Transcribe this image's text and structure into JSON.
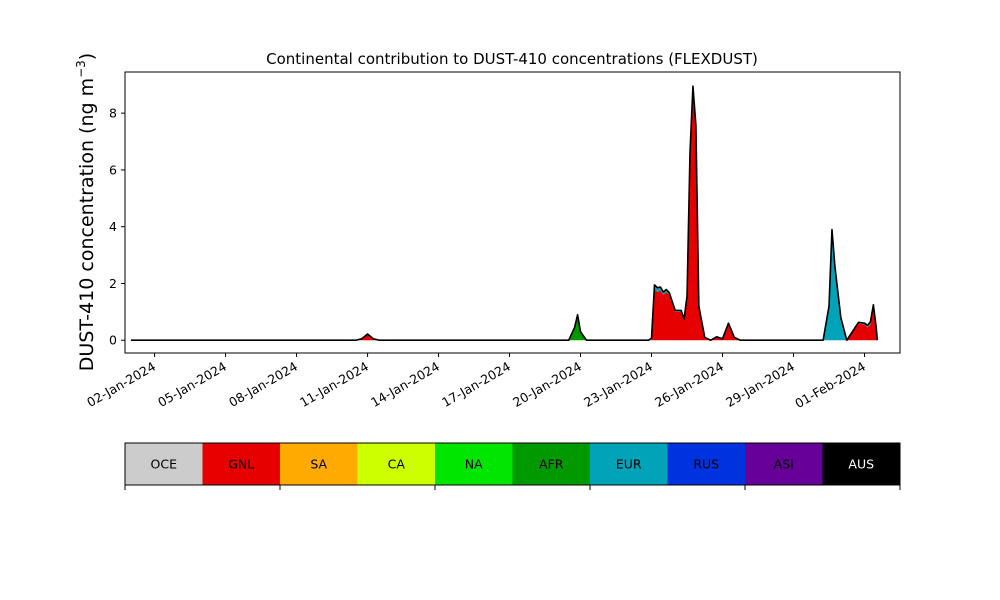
{
  "chart_data": {
    "type": "area",
    "stacked": true,
    "title": "Continental contribution to DUST-410 concentrations (FLEXDUST)",
    "ylabel_main": "DUST-410 concentration (ng m",
    "ylabel_exp": "−3",
    "ylabel_close": ")",
    "xlabel": "",
    "x_start": "2024-01-01T00:00",
    "x_end": "2024-02-01T00:00",
    "xlim": [
      "2023-12-31T18:00",
      "2024-02-02T12:00"
    ],
    "ylim": [
      -0.45,
      9.45
    ],
    "yticks": [
      0,
      2,
      4,
      6,
      8
    ],
    "ytick_labels": [
      "0",
      "2",
      "4",
      "6",
      "8"
    ],
    "xticks": [
      "2024-01-02",
      "2024-01-05",
      "2024-01-08",
      "2024-01-11",
      "2024-01-14",
      "2024-01-17",
      "2024-01-20",
      "2024-01-23",
      "2024-01-26",
      "2024-01-29",
      "2024-02-01"
    ],
    "xtick_labels": [
      "02-Jan-2024",
      "05-Jan-2024",
      "08-Jan-2024",
      "11-Jan-2024",
      "14-Jan-2024",
      "17-Jan-2024",
      "20-Jan-2024",
      "23-Jan-2024",
      "26-Jan-2024",
      "29-Jan-2024",
      "01-Feb-2024"
    ],
    "grid": false,
    "total_line_color": "#000000",
    "series": [
      {
        "name": "GNL",
        "color": "#e60000",
        "points": [
          [
            "2024-01-01T00:00",
            0
          ],
          [
            "2024-01-10T12:00",
            0
          ],
          [
            "2024-01-10T18:00",
            0.05
          ],
          [
            "2024-01-11T00:00",
            0.22
          ],
          [
            "2024-01-11T06:00",
            0.05
          ],
          [
            "2024-01-11T12:00",
            0
          ],
          [
            "2024-01-23T00:00",
            0
          ],
          [
            "2024-01-23T03:00",
            1.8
          ],
          [
            "2024-01-23T06:00",
            1.7
          ],
          [
            "2024-01-23T09:00",
            1.75
          ],
          [
            "2024-01-23T12:00",
            1.6
          ],
          [
            "2024-01-23T15:00",
            1.7
          ],
          [
            "2024-01-23T18:00",
            1.6
          ],
          [
            "2024-01-24T00:00",
            1.0
          ],
          [
            "2024-01-24T06:00",
            1.0
          ],
          [
            "2024-01-24T09:00",
            0.7
          ],
          [
            "2024-01-24T12:00",
            1.5
          ],
          [
            "2024-01-24T15:00",
            6.5
          ],
          [
            "2024-01-24T18:00",
            8.8
          ],
          [
            "2024-01-24T21:00",
            7.5
          ],
          [
            "2024-01-25T00:00",
            1.2
          ],
          [
            "2024-01-25T06:00",
            0.1
          ],
          [
            "2024-01-25T12:00",
            0
          ],
          [
            "2024-01-25T18:00",
            0.12
          ],
          [
            "2024-01-26T00:00",
            0.05
          ],
          [
            "2024-01-26T06:00",
            0.6
          ],
          [
            "2024-01-26T12:00",
            0.1
          ],
          [
            "2024-01-26T18:00",
            0
          ],
          [
            "2024-01-31T06:00",
            0
          ],
          [
            "2024-01-31T12:00",
            0.3
          ],
          [
            "2024-01-31T18:00",
            0.6
          ],
          [
            "2024-02-01T00:00",
            0.55
          ],
          [
            "2024-02-01T03:00",
            0.45
          ],
          [
            "2024-02-01T06:00",
            0.55
          ],
          [
            "2024-02-01T09:00",
            1.2
          ],
          [
            "2024-02-01T12:00",
            0.4
          ],
          [
            "2024-02-01T13:00",
            0
          ]
        ]
      },
      {
        "name": "AFR",
        "color": "#009900",
        "points": [
          [
            "2024-01-01T00:00",
            0
          ],
          [
            "2024-01-19T12:00",
            0
          ],
          [
            "2024-01-19T18:00",
            0.45
          ],
          [
            "2024-01-19T21:00",
            0.9
          ],
          [
            "2024-01-20T00:00",
            0.3
          ],
          [
            "2024-01-20T06:00",
            0
          ],
          [
            "2024-02-01T13:00",
            0
          ]
        ]
      },
      {
        "name": "EUR",
        "color": "#00a3b8",
        "points": [
          [
            "2024-01-01T00:00",
            0
          ],
          [
            "2024-01-22T21:00",
            0
          ],
          [
            "2024-01-23T03:00",
            0.15
          ],
          [
            "2024-01-23T06:00",
            0.15
          ],
          [
            "2024-01-23T12:00",
            0.1
          ],
          [
            "2024-01-24T00:00",
            0.05
          ],
          [
            "2024-01-24T12:00",
            0.05
          ],
          [
            "2024-01-24T18:00",
            0.15
          ],
          [
            "2024-01-25T00:00",
            0
          ],
          [
            "2024-01-30T06:00",
            0
          ],
          [
            "2024-01-30T12:00",
            1.2
          ],
          [
            "2024-01-30T15:00",
            3.9
          ],
          [
            "2024-01-30T18:00",
            2.6
          ],
          [
            "2024-01-31T00:00",
            0.8
          ],
          [
            "2024-01-31T06:00",
            0
          ],
          [
            "2024-02-01T00:00",
            0.05
          ],
          [
            "2024-02-01T06:00",
            0.1
          ],
          [
            "2024-02-01T09:00",
            0.05
          ],
          [
            "2024-02-01T13:00",
            0
          ]
        ]
      }
    ],
    "legend": {
      "placement": "bottom",
      "entries": [
        {
          "label": "OCE",
          "color": "#cccccc"
        },
        {
          "label": "GNL",
          "color": "#e60000"
        },
        {
          "label": "SA",
          "color": "#ffaa00"
        },
        {
          "label": "CA",
          "color": "#ccff00"
        },
        {
          "label": "NA",
          "color": "#00e600"
        },
        {
          "label": "AFR",
          "color": "#009900"
        },
        {
          "label": "EUR",
          "color": "#00a3b8"
        },
        {
          "label": "RUS",
          "color": "#0033e0"
        },
        {
          "label": "ASI",
          "color": "#660099"
        },
        {
          "label": "AUS",
          "color": "#000000"
        }
      ]
    }
  }
}
